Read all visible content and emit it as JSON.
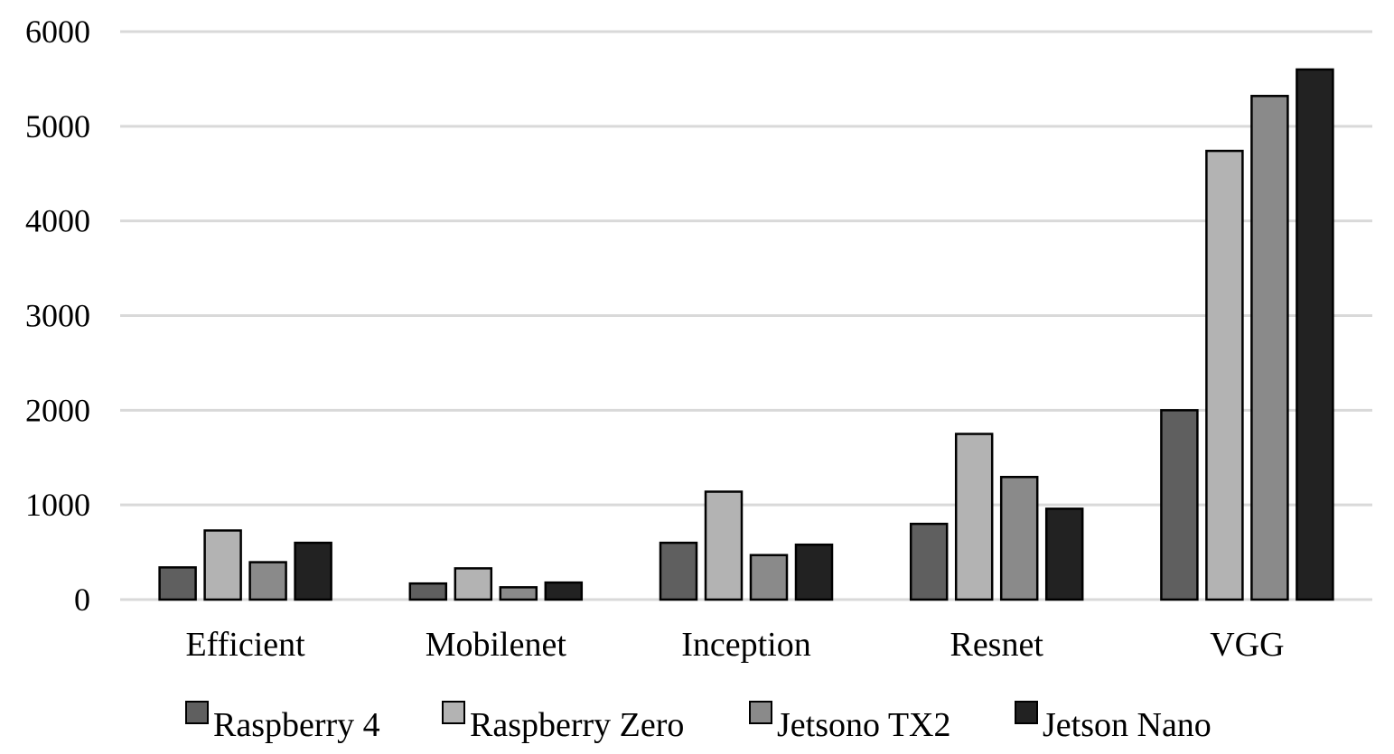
{
  "chart_data": {
    "type": "bar",
    "title": "",
    "xlabel": "",
    "ylabel": "",
    "ylim": [
      0,
      6000
    ],
    "yticks": [
      0,
      1000,
      2000,
      3000,
      4000,
      5000,
      6000
    ],
    "ytick_labels": [
      "0",
      "1000",
      "2000",
      "3000",
      "4000",
      "5000",
      "6000"
    ],
    "grid": true,
    "legend_position": "bottom",
    "categories": [
      "Efficient",
      "Mobilenet",
      "Inception",
      "Resnet",
      "VGG"
    ],
    "series": [
      {
        "name": "Raspberry 4",
        "color": "#5f5f5f",
        "values": [
          340,
          170,
          600,
          800,
          2000
        ]
      },
      {
        "name": "Raspberry Zero",
        "color": "#b3b3b3",
        "values": [
          730,
          330,
          1140,
          1750,
          4740
        ]
      },
      {
        "name": "Jetsono TX2",
        "color": "#8a8a8a",
        "values": [
          395,
          130,
          470,
          1295,
          5320
        ]
      },
      {
        "name": "Jetson Nano",
        "color": "#222222",
        "values": [
          600,
          180,
          580,
          960,
          5600
        ]
      }
    ]
  }
}
